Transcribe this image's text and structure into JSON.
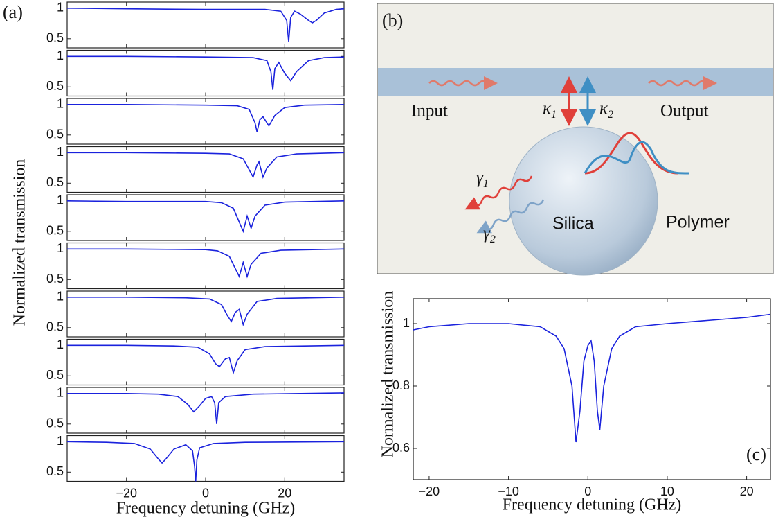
{
  "chart_data": [
    {
      "type": "line",
      "panel_label": "(a)",
      "xlabel": "Frequency detuning (GHz)",
      "ylabel": "Normalized transmission",
      "color": "#1a22dd",
      "xlim": [
        -35,
        35
      ],
      "xticks": [
        {
          "value": -20,
          "label": "−20"
        },
        0,
        20
      ],
      "subplots": [
        {
          "ylim": [
            0.35,
            1.1
          ],
          "yticks": [
            0.5,
            1
          ],
          "x": [
            -35,
            -20,
            0,
            15,
            19,
            20.5,
            21,
            21.5,
            22.5,
            24,
            26,
            27,
            28,
            30,
            33,
            35
          ],
          "values": [
            1.0,
            0.99,
            0.98,
            0.98,
            0.95,
            0.8,
            0.45,
            0.85,
            0.95,
            0.9,
            0.8,
            0.76,
            0.8,
            0.92,
            0.98,
            0.99
          ]
        },
        {
          "ylim": [
            0.35,
            1.1
          ],
          "yticks": [
            0.5,
            1
          ],
          "x": [
            -35,
            -20,
            0,
            12,
            15.5,
            16.5,
            17,
            17.5,
            18.5,
            20,
            21.5,
            23,
            26,
            30,
            35
          ],
          "values": [
            1.0,
            1.0,
            0.99,
            0.98,
            0.93,
            0.75,
            0.45,
            0.8,
            0.9,
            0.72,
            0.6,
            0.75,
            0.93,
            0.98,
            0.99
          ]
        },
        {
          "ylim": [
            0.35,
            1.1
          ],
          "yticks": [
            0.5,
            1
          ],
          "x": [
            -35,
            -20,
            0,
            8,
            11,
            12.5,
            13,
            13.7,
            14.5,
            16,
            17.5,
            20,
            25,
            35
          ],
          "values": [
            1,
            1,
            0.99,
            0.98,
            0.92,
            0.7,
            0.55,
            0.75,
            0.8,
            0.65,
            0.82,
            0.95,
            0.99,
            1
          ]
        },
        {
          "ylim": [
            0.35,
            1.1
          ],
          "yticks": [
            0.5,
            1
          ],
          "x": [
            -35,
            -20,
            0,
            6,
            9.5,
            11,
            12,
            13,
            13.5,
            14.5,
            15.5,
            18,
            23,
            35
          ],
          "values": [
            1,
            1,
            0.99,
            0.98,
            0.9,
            0.72,
            0.6,
            0.8,
            0.85,
            0.6,
            0.75,
            0.93,
            0.98,
            1
          ]
        },
        {
          "ylim": [
            0.35,
            1.1
          ],
          "yticks": [
            0.5,
            1
          ],
          "x": [
            -35,
            -20,
            0,
            4,
            7,
            8.5,
            9.5,
            10.5,
            11.5,
            12.5,
            15,
            20,
            35
          ],
          "values": [
            1,
            0.99,
            0.99,
            0.97,
            0.88,
            0.65,
            0.5,
            0.75,
            0.55,
            0.75,
            0.93,
            0.98,
            1
          ]
        },
        {
          "ylim": [
            0.35,
            1.1
          ],
          "yticks": [
            0.5,
            1
          ],
          "x": [
            -35,
            -20,
            0,
            3,
            6,
            7.5,
            8.5,
            9.5,
            10.5,
            11.5,
            14,
            19,
            35
          ],
          "values": [
            1,
            1,
            0.99,
            0.97,
            0.88,
            0.68,
            0.55,
            0.78,
            0.55,
            0.75,
            0.93,
            0.98,
            1
          ]
        },
        {
          "ylim": [
            0.35,
            1.1
          ],
          "yticks": [
            0.5,
            1
          ],
          "x": [
            -35,
            -20,
            -5,
            1,
            4,
            5.5,
            6.5,
            7.5,
            8.5,
            9.5,
            10.5,
            13,
            18,
            35
          ],
          "values": [
            1,
            1,
            0.99,
            0.97,
            0.88,
            0.7,
            0.6,
            0.75,
            0.8,
            0.55,
            0.72,
            0.93,
            0.98,
            1
          ]
        },
        {
          "ylim": [
            0.35,
            1.1
          ],
          "yticks": [
            0.5,
            1
          ],
          "x": [
            -35,
            -20,
            -8,
            -2,
            1,
            2.5,
            3.5,
            5,
            6,
            7,
            8,
            10,
            15,
            35
          ],
          "values": [
            1,
            1,
            0.99,
            0.97,
            0.86,
            0.7,
            0.65,
            0.78,
            0.8,
            0.55,
            0.75,
            0.93,
            0.98,
            1
          ]
        },
        {
          "ylim": [
            0.35,
            1.1
          ],
          "yticks": [
            0.5,
            1
          ],
          "x": [
            -35,
            -20,
            -12,
            -7,
            -4.5,
            -3,
            -1.5,
            0,
            1.5,
            2.3,
            2.8,
            3.3,
            5,
            12,
            35
          ],
          "values": [
            1,
            1,
            0.99,
            0.95,
            0.82,
            0.7,
            0.8,
            0.92,
            0.95,
            0.85,
            0.5,
            0.85,
            0.95,
            0.99,
            1.01
          ]
        },
        {
          "ylim": [
            0.35,
            1.1
          ],
          "yticks": [
            0.5,
            1
          ],
          "x": [
            -35,
            -25,
            -18,
            -14,
            -12,
            -11,
            -10,
            -8,
            -5,
            -3.3,
            -2.8,
            -2.5,
            -2.2,
            -1.5,
            2,
            10,
            35
          ],
          "values": [
            1,
            0.99,
            0.97,
            0.88,
            0.72,
            0.65,
            0.72,
            0.88,
            0.95,
            0.85,
            0.6,
            0.35,
            0.7,
            0.9,
            0.97,
            0.99,
            1
          ]
        }
      ]
    },
    {
      "type": "line",
      "panel_label": "(c)",
      "xlabel": "Frequency detuning (GHz)",
      "ylabel": "Normalized  transmission",
      "color": "#1a22dd",
      "xlim": [
        -22,
        23
      ],
      "ylim": [
        0.5,
        1.08
      ],
      "xticks": [
        {
          "value": -20,
          "label": "−20"
        },
        {
          "value": -10,
          "label": "−10"
        },
        0,
        10,
        20
      ],
      "yticks": [
        0.6,
        0.8,
        1
      ],
      "x": [
        -22,
        -20,
        -15,
        -10,
        -6,
        -4,
        -3,
        -2,
        -1.5,
        -1,
        -0.5,
        0,
        0.4,
        0.8,
        1.2,
        1.5,
        2,
        3,
        4,
        6,
        10,
        15,
        20,
        23
      ],
      "values": [
        0.98,
        0.99,
        1.0,
        1.0,
        0.99,
        0.96,
        0.92,
        0.8,
        0.62,
        0.72,
        0.88,
        0.93,
        0.945,
        0.88,
        0.72,
        0.66,
        0.8,
        0.92,
        0.96,
        0.99,
        1.0,
        1.01,
        1.02,
        1.03
      ]
    }
  ],
  "diagram": {
    "panel_label": "(b)",
    "input": "Input",
    "output": "Output",
    "core": "Silica",
    "cladding": "Polymer",
    "couplings": [
      {
        "symbol": "κ",
        "sub": "1"
      },
      {
        "symbol": "κ",
        "sub": "2"
      }
    ],
    "losses": [
      {
        "symbol": "γ",
        "sub": "1"
      },
      {
        "symbol": "γ",
        "sub": "2"
      }
    ]
  }
}
